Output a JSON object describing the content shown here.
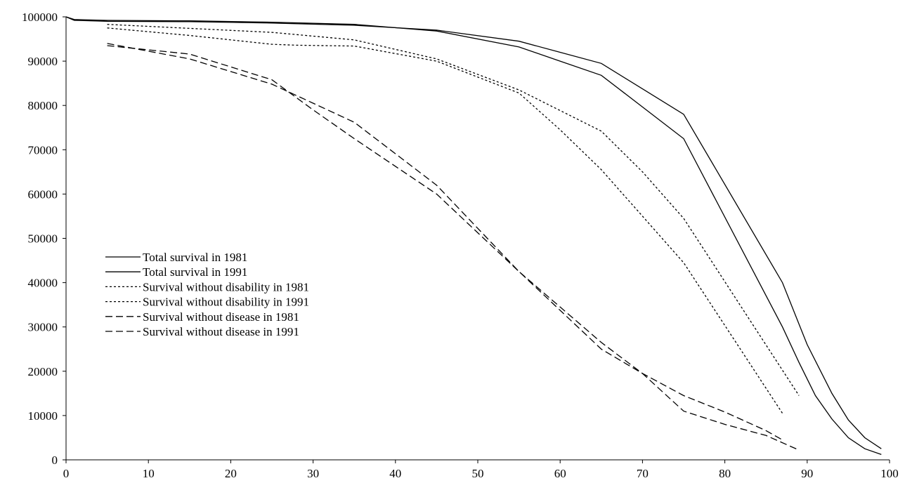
{
  "chart_data": {
    "type": "line",
    "title": "",
    "xlabel": "",
    "ylabel": "",
    "xlim": [
      0,
      100
    ],
    "ylim": [
      0,
      100000
    ],
    "x_ticks": [
      "0",
      "10",
      "20",
      "30",
      "40",
      "50",
      "60",
      "70",
      "80",
      "90",
      "100"
    ],
    "y_ticks": [
      "0",
      "10000",
      "20000",
      "30000",
      "40000",
      "50000",
      "60000",
      "70000",
      "80000",
      "90000",
      "100000"
    ],
    "grid": false,
    "legend_position": "center-left",
    "series": [
      {
        "name": "Total survival in 1981",
        "style": "solid",
        "points": [
          [
            0,
            100000
          ],
          [
            1,
            99200
          ],
          [
            5,
            99000
          ],
          [
            15,
            98900
          ],
          [
            25,
            98600
          ],
          [
            35,
            98100
          ],
          [
            45,
            97000
          ],
          [
            55,
            94500
          ],
          [
            60,
            92000
          ],
          [
            65,
            89500
          ],
          [
            75,
            78000
          ],
          [
            87,
            40000
          ],
          [
            90,
            26000
          ],
          [
            93,
            15000
          ],
          [
            95,
            9000
          ],
          [
            97,
            5000
          ],
          [
            99,
            2500
          ]
        ]
      },
      {
        "name": "Total survival in 1991",
        "style": "solid",
        "points": [
          [
            0,
            100000
          ],
          [
            1,
            99400
          ],
          [
            5,
            99200
          ],
          [
            15,
            99100
          ],
          [
            25,
            98800
          ],
          [
            35,
            98300
          ],
          [
            45,
            96800
          ],
          [
            55,
            93200
          ],
          [
            60,
            90000
          ],
          [
            65,
            86800
          ],
          [
            75,
            72500
          ],
          [
            87,
            30000
          ],
          [
            89,
            22000
          ],
          [
            91,
            14500
          ],
          [
            93,
            9200
          ],
          [
            95,
            5000
          ],
          [
            97,
            2500
          ],
          [
            99,
            1200
          ]
        ]
      },
      {
        "name": "Survival without disability in 1981",
        "style": "dotted",
        "points": [
          [
            5,
            97500
          ],
          [
            15,
            95800
          ],
          [
            25,
            93800
          ],
          [
            28,
            93600
          ],
          [
            35,
            93400
          ],
          [
            45,
            90000
          ],
          [
            55,
            82800
          ],
          [
            60,
            74500
          ],
          [
            65,
            65500
          ],
          [
            75,
            44500
          ],
          [
            87,
            10500
          ]
        ]
      },
      {
        "name": "Survival without disability in 1991",
        "style": "dotted",
        "points": [
          [
            5,
            98300
          ],
          [
            15,
            97400
          ],
          [
            25,
            96500
          ],
          [
            35,
            94800
          ],
          [
            45,
            90500
          ],
          [
            55,
            83500
          ],
          [
            65,
            74200
          ],
          [
            70,
            65000
          ],
          [
            75,
            54500
          ],
          [
            89,
            14500
          ]
        ]
      },
      {
        "name": "Survival without disease in 1981",
        "style": "dashed",
        "points": [
          [
            5,
            93500
          ],
          [
            15,
            91600
          ],
          [
            25,
            85800
          ],
          [
            30,
            79000
          ],
          [
            35,
            72500
          ],
          [
            45,
            60000
          ],
          [
            55,
            42500
          ],
          [
            65,
            25000
          ],
          [
            70,
            19500
          ],
          [
            75,
            11000
          ],
          [
            80,
            8000
          ],
          [
            85,
            5500
          ],
          [
            89,
            2200
          ]
        ]
      },
      {
        "name": "Survival without disease in 1991",
        "style": "dashed",
        "points": [
          [
            5,
            94000
          ],
          [
            15,
            90500
          ],
          [
            25,
            84800
          ],
          [
            30,
            80500
          ],
          [
            35,
            76200
          ],
          [
            45,
            62000
          ],
          [
            55,
            42500
          ],
          [
            65,
            26500
          ],
          [
            70,
            19500
          ],
          [
            75,
            14500
          ],
          [
            80,
            10800
          ],
          [
            85,
            6600
          ],
          [
            87,
            4500
          ]
        ]
      }
    ]
  }
}
